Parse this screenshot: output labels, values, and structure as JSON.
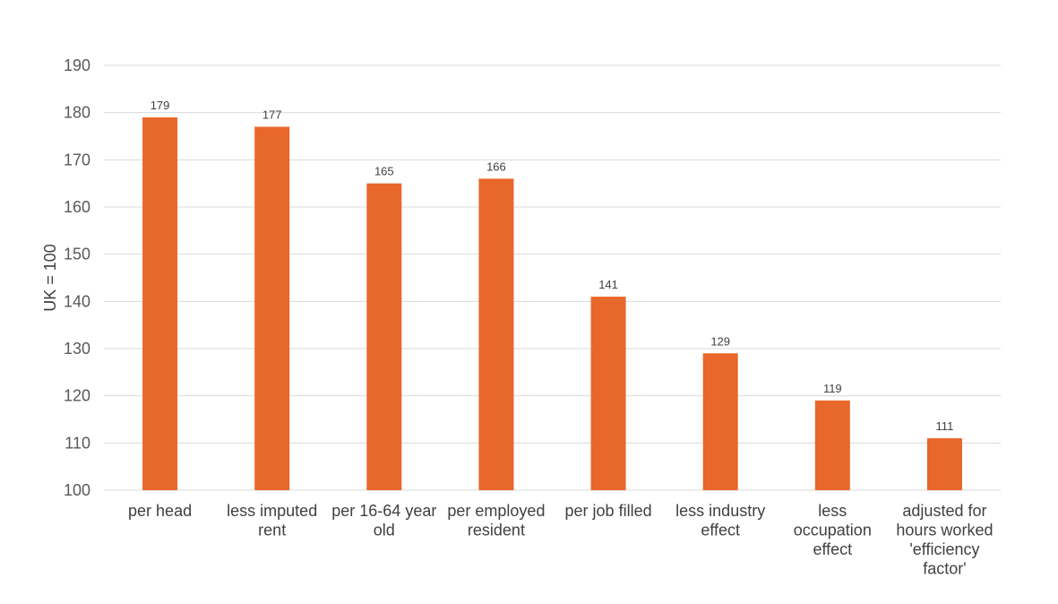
{
  "chart_data": {
    "type": "bar",
    "categories": [
      [
        "per head"
      ],
      [
        "less imputed",
        "rent"
      ],
      [
        "per 16-64 year",
        "old"
      ],
      [
        "per employed",
        "resident"
      ],
      [
        "per job filled"
      ],
      [
        "less industry",
        "effect"
      ],
      [
        "less",
        "occupation",
        "effect"
      ],
      [
        "adjusted for",
        "hours worked",
        "'efficiency",
        "factor'"
      ]
    ],
    "values": [
      179,
      177,
      165,
      166,
      141,
      129,
      119,
      111
    ],
    "ylabel": "UK = 100",
    "ylim": [
      100,
      190
    ],
    "yticks": [
      100,
      110,
      120,
      130,
      140,
      150,
      160,
      170,
      180,
      190
    ],
    "grid": true,
    "bar_color": "#e8672a"
  }
}
